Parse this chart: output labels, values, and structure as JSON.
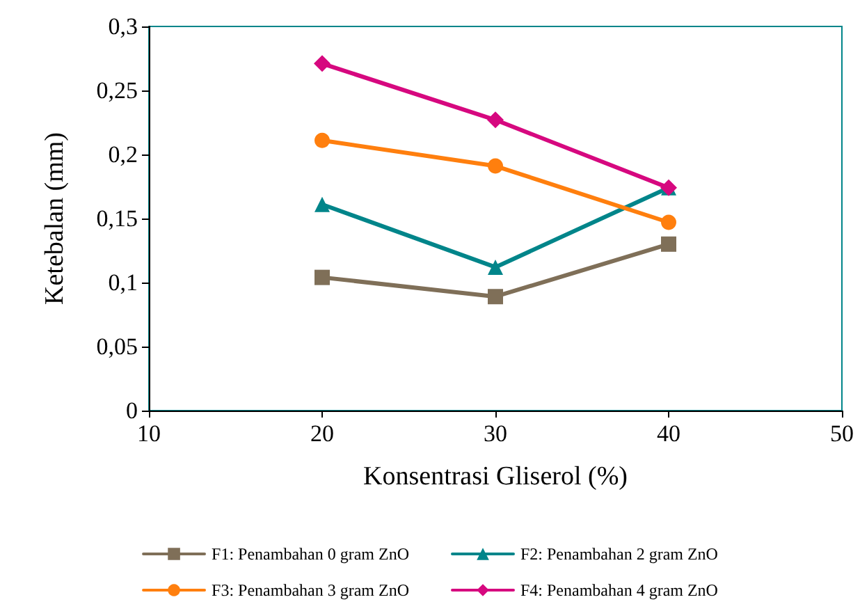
{
  "chart_data": {
    "type": "line",
    "xlabel": "Konsentrasi Gliserol (%)",
    "ylabel": "Ketebalan (mm)",
    "x": [
      20,
      30,
      40
    ],
    "xlim": [
      10,
      50
    ],
    "xticks": [
      10,
      20,
      30,
      40,
      50
    ],
    "ylim": [
      0,
      0.3
    ],
    "yticks": [
      {
        "value": 0,
        "label": "0"
      },
      {
        "value": 0.05,
        "label": "0,05"
      },
      {
        "value": 0.1,
        "label": "0,1"
      },
      {
        "value": 0.15,
        "label": "0,15"
      },
      {
        "value": 0.2,
        "label": "0,2"
      },
      {
        "value": 0.25,
        "label": "0,25"
      },
      {
        "value": 0.3,
        "label": "0,3"
      }
    ],
    "grid": false,
    "legend": "bottom",
    "line_style": "solid",
    "series": [
      {
        "name": "F1: Penambahan 0 gram ZnO",
        "color": "#7f6f58",
        "marker": "square",
        "values": [
          0.104,
          0.089,
          0.13
        ]
      },
      {
        "name": "F2: Penambahan 2 gram ZnO",
        "color": "#00858a",
        "marker": "triangle",
        "values": [
          0.161,
          0.112,
          0.174
        ]
      },
      {
        "name": "F3: Penambahan 3 gram ZnO",
        "color": "#ff7f0e",
        "marker": "circle",
        "values": [
          0.211,
          0.191,
          0.147
        ]
      },
      {
        "name": "F4: Penambahan 4 gram ZnO",
        "color": "#d6087f",
        "marker": "diamond",
        "values": [
          0.271,
          0.227,
          0.174
        ]
      }
    ]
  }
}
